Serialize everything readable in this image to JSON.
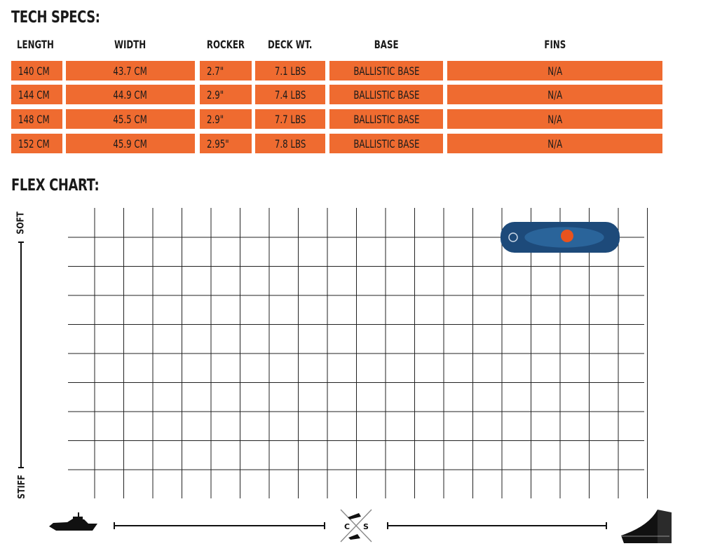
{
  "tech_specs": {
    "title": "TECH SPECS:",
    "headers": [
      "LENGTH",
      "WIDTH",
      "ROCKER",
      "DECK WT.",
      "BASE",
      "FINS"
    ],
    "rows": [
      [
        "140 CM",
        "43.7 CM",
        "2.7\"",
        "7.1 LBS",
        "BALLISTIC BASE",
        "N/A"
      ],
      [
        "144 CM",
        "44.9 CM",
        "2.9\"",
        "7.4 LBS",
        "BALLISTIC BASE",
        "N/A"
      ],
      [
        "148 CM",
        "45.5 CM",
        "2.9\"",
        "7.7  LBS",
        "BALLISTIC BASE",
        "N/A"
      ],
      [
        "152 CM",
        "45.9 CM",
        "2.95\"",
        "7.8  LBS",
        "BALLISTIC BASE",
        "N/A"
      ]
    ],
    "cell_color": "#ef6b30"
  },
  "flex_chart": {
    "title": "FLEX CHART:",
    "y_axis": {
      "top_label": "SOFT",
      "bottom_label": "STIFF"
    },
    "x_axis": {
      "left_icon": "boat-icon",
      "right_icon": "ramp-icon",
      "center_icon": "cable-park-icon",
      "center_letters": [
        "C",
        "S"
      ]
    },
    "grid": {
      "columns": 20,
      "rows": 9,
      "line_color": "#222222"
    },
    "board_marker": {
      "icon": "wakeboard-icon",
      "column_start": 15,
      "column_end": 19,
      "row": 1,
      "colors": [
        "#1d4a7a",
        "#2e6aa3",
        "#e8531e"
      ]
    }
  }
}
